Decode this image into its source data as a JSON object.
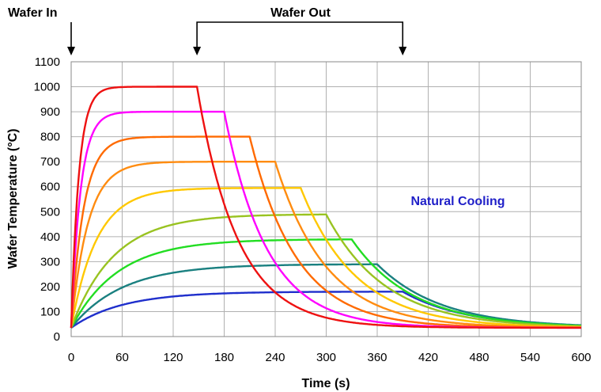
{
  "chart_data": {
    "type": "line",
    "title": "",
    "xlabel": "Time (s)",
    "ylabel": "Wafer Temperature (°C)",
    "xlim": [
      0,
      600
    ],
    "ylim": [
      0,
      1100
    ],
    "xticks": [
      0,
      60,
      120,
      180,
      240,
      300,
      360,
      420,
      480,
      540,
      600
    ],
    "yticks": [
      0,
      100,
      200,
      300,
      400,
      500,
      600,
      700,
      800,
      900,
      1000,
      1100
    ],
    "grid": "vertical-and-horizontal",
    "legend": "none",
    "annotations": {
      "wafer_in": "Wafer In",
      "wafer_out": "Wafer Out",
      "natural_cooling": "Natural Cooling",
      "natural_cooling_color": "#1f1fc8",
      "wafer_in_time": 0,
      "wafer_out_range": [
        148,
        390
      ]
    },
    "ambient": 35,
    "series": [
      {
        "color": "#1f2fcc",
        "plateau": 180,
        "tau_heat": 60,
        "t_out": 390,
        "tau_cool": 75
      },
      {
        "color": "#1a8080",
        "plateau": 290,
        "tau_heat": 60,
        "t_out": 360,
        "tau_cool": 75
      },
      {
        "color": "#22dd22",
        "plateau": 390,
        "tau_heat": 55,
        "t_out": 330,
        "tau_cool": 72
      },
      {
        "color": "#99c321",
        "plateau": 490,
        "tau_heat": 50,
        "t_out": 300,
        "tau_cool": 70
      },
      {
        "color": "#ffc800",
        "plateau": 595,
        "tau_heat": 30,
        "t_out": 270,
        "tau_cool": 65
      },
      {
        "color": "#ff8c10",
        "plateau": 700,
        "tau_heat": 20,
        "t_out": 240,
        "tau_cool": 60
      },
      {
        "color": "#ff6a00",
        "plateau": 800,
        "tau_heat": 15,
        "t_out": 210,
        "tau_cool": 55
      },
      {
        "color": "#ff00ff",
        "plateau": 900,
        "tau_heat": 11,
        "t_out": 180,
        "tau_cool": 50
      },
      {
        "color": "#ee1111",
        "plateau": 1000,
        "tau_heat": 9,
        "t_out": 148,
        "tau_cool": 48
      }
    ]
  }
}
